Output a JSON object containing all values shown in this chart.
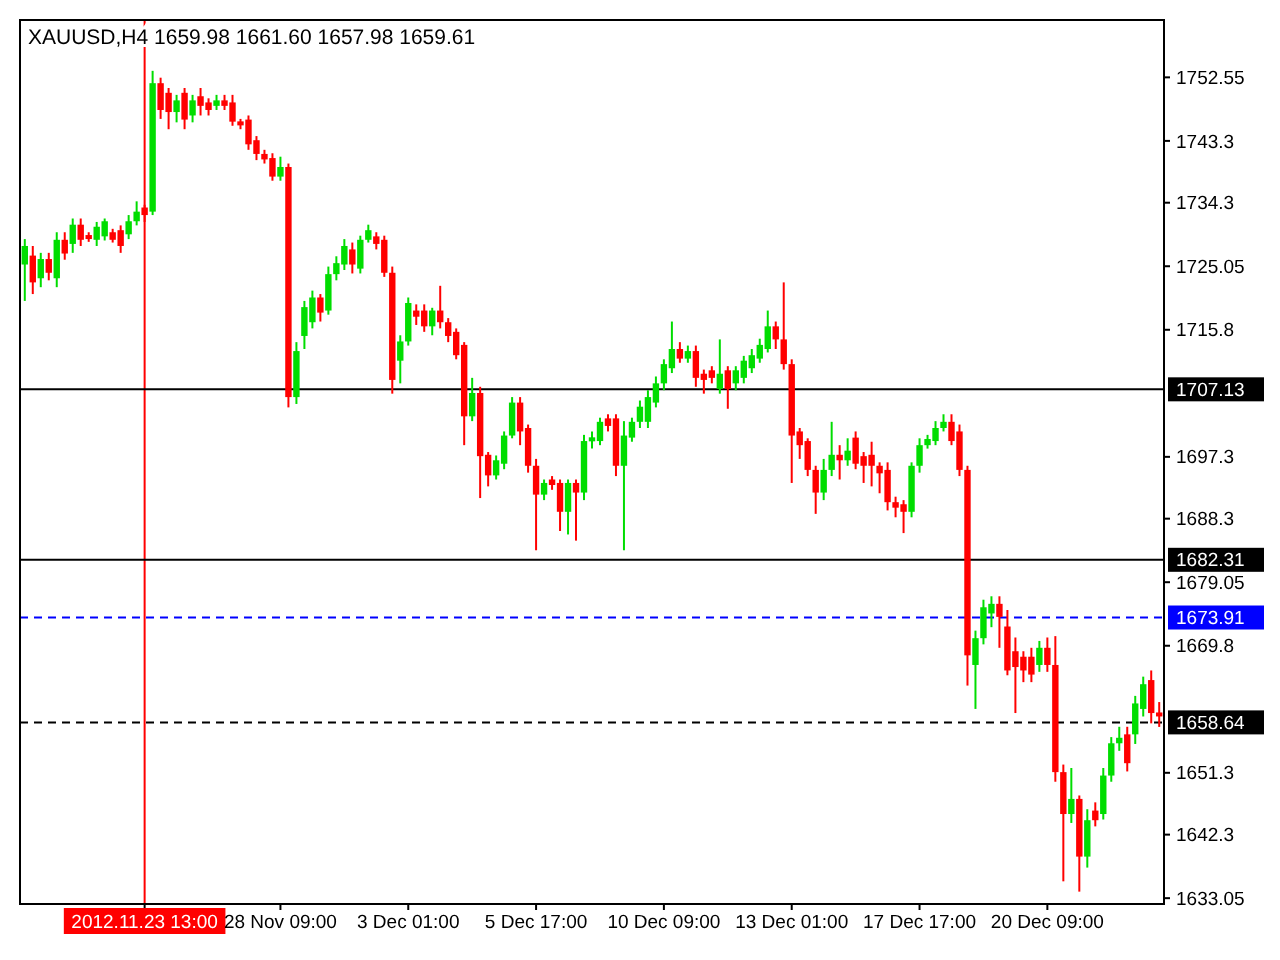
{
  "chart_data": {
    "type": "candlestick",
    "title": "XAUUSD,H4  1659.98 1661.60 1657.98 1659.61",
    "categories": [
      null,
      null,
      null,
      null,
      null,
      null,
      null,
      null,
      null,
      null,
      null,
      null,
      null,
      null,
      null,
      "2012.11.23 13:00",
      null,
      null,
      null,
      null,
      null,
      null,
      null,
      null,
      null,
      null,
      null,
      null,
      null,
      null,
      null,
      null,
      "28 Nov 09:00",
      null,
      null,
      null,
      null,
      null,
      null,
      null,
      null,
      null,
      null,
      null,
      null,
      null,
      null,
      null,
      "3 Dec 01:00",
      null,
      null,
      null,
      null,
      null,
      null,
      null,
      null,
      null,
      null,
      null,
      null,
      null,
      null,
      null,
      "5 Dec 17:00",
      null,
      null,
      null,
      null,
      null,
      null,
      null,
      null,
      null,
      null,
      null,
      null,
      null,
      null,
      null,
      "10 Dec 09:00",
      null,
      null,
      null,
      null,
      null,
      null,
      null,
      null,
      null,
      null,
      null,
      null,
      null,
      null,
      null,
      "13 Dec 01:00",
      null,
      null,
      null,
      null,
      null,
      null,
      null,
      null,
      null,
      null,
      null,
      null,
      null,
      null,
      null,
      "17 Dec 17:00",
      null,
      null,
      null,
      null,
      null,
      null,
      null,
      null,
      null,
      null,
      null,
      null,
      null,
      null,
      null,
      "20 Dec 09:00",
      null,
      null,
      null,
      null,
      null,
      null,
      null,
      null,
      null,
      null,
      null,
      null,
      null,
      null
    ],
    "ohlc": [
      [
        1725.3,
        1729,
        1720,
        1728
      ],
      [
        1726.6,
        1728,
        1721,
        1722.7
      ],
      [
        1723.3,
        1727,
        1722,
        1726.1
      ],
      [
        1726.1,
        1727,
        1723,
        1724.1
      ],
      [
        1723.3,
        1730,
        1722,
        1728.9
      ],
      [
        1728.9,
        1730,
        1726,
        1726.9
      ],
      [
        1728.3,
        1732,
        1727,
        1731.1
      ],
      [
        1731.1,
        1732,
        1728,
        1728.9
      ],
      [
        1729.4,
        1730,
        1728.6,
        1729.2
      ],
      [
        1728.9,
        1731.5,
        1728,
        1730.8
      ],
      [
        1729.4,
        1732,
        1728.8,
        1731.6
      ],
      [
        1730,
        1730.5,
        1728.5,
        1728.9
      ],
      [
        1730.3,
        1731,
        1727,
        1728
      ],
      [
        1729.7,
        1732.5,
        1729,
        1731.6
      ],
      [
        1731.6,
        1734.5,
        1731,
        1733
      ],
      [
        1733.6,
        1734,
        1731.5,
        1732.5
      ],
      [
        1733,
        1753.5,
        1732.5,
        1751.7
      ],
      [
        1751.7,
        1752.5,
        1746.5,
        1747.8
      ],
      [
        1750.3,
        1751,
        1745,
        1747.5
      ],
      [
        1747.5,
        1750,
        1746,
        1749.2
      ],
      [
        1750.3,
        1751,
        1745,
        1746.4
      ],
      [
        1747,
        1750,
        1746,
        1749.2
      ],
      [
        1749.8,
        1751,
        1747,
        1748.4
      ],
      [
        1748.9,
        1749.5,
        1747,
        1747.8
      ],
      [
        1748.4,
        1750,
        1747.8,
        1749.2
      ],
      [
        1749.2,
        1750,
        1747.8,
        1748.4
      ],
      [
        1748.9,
        1750,
        1745.5,
        1746.1
      ],
      [
        1746.1,
        1746.5,
        1745,
        1745.6
      ],
      [
        1746.4,
        1747,
        1742,
        1742.8
      ],
      [
        1743.4,
        1744,
        1740.5,
        1741.4
      ],
      [
        1741.4,
        1742,
        1740,
        1740.6
      ],
      [
        1740.8,
        1741.5,
        1737.5,
        1738.1
      ],
      [
        1738.1,
        1741,
        1737.5,
        1739.5
      ],
      [
        1739.5,
        1740,
        1704.5,
        1706
      ],
      [
        1706,
        1714,
        1705,
        1712.7
      ],
      [
        1714.9,
        1720,
        1713,
        1719.1
      ],
      [
        1716.9,
        1721.5,
        1716,
        1720.5
      ],
      [
        1720.5,
        1721,
        1717,
        1718.3
      ],
      [
        1718.6,
        1725,
        1718,
        1723.9
      ],
      [
        1723.9,
        1726.5,
        1723,
        1725.5
      ],
      [
        1725.3,
        1729,
        1724.5,
        1728
      ],
      [
        1727.5,
        1728.5,
        1724,
        1725.3
      ],
      [
        1724.7,
        1729.5,
        1724,
        1728.9
      ],
      [
        1728.9,
        1731.1,
        1728.5,
        1730.3
      ],
      [
        1729.4,
        1730,
        1727.5,
        1728.3
      ],
      [
        1728.9,
        1729.5,
        1723.5,
        1724.1
      ],
      [
        1724.1,
        1725,
        1706.5,
        1708.5
      ],
      [
        1711.3,
        1715,
        1708,
        1714.1
      ],
      [
        1714.1,
        1720.5,
        1713.5,
        1719.7
      ],
      [
        1718.6,
        1719.5,
        1716.5,
        1717.7
      ],
      [
        1718.6,
        1719.5,
        1715.5,
        1716.3
      ],
      [
        1716.3,
        1719,
        1715,
        1718.6
      ],
      [
        1718.6,
        1722.2,
        1716,
        1716.9
      ],
      [
        1716.9,
        1717.5,
        1714,
        1714.9
      ],
      [
        1715.5,
        1716,
        1711.5,
        1712.1
      ],
      [
        1713.6,
        1714,
        1699,
        1703.2
      ],
      [
        1703.2,
        1708.8,
        1702.5,
        1706.6
      ],
      [
        1706.6,
        1707.5,
        1691.3,
        1697.4
      ],
      [
        1697.6,
        1698,
        1693,
        1694.6
      ],
      [
        1694.6,
        1697.5,
        1694,
        1696.8
      ],
      [
        1696.3,
        1701,
        1695.5,
        1700.4
      ],
      [
        1700.4,
        1706,
        1700,
        1705.2
      ],
      [
        1705.2,
        1706,
        1699,
        1701
      ],
      [
        1701.5,
        1702,
        1695,
        1696
      ],
      [
        1696,
        1697,
        1683.7,
        1691.8
      ],
      [
        1691.8,
        1694,
        1691,
        1693.5
      ],
      [
        1694,
        1694.5,
        1692.5,
        1693.2
      ],
      [
        1693.5,
        1694,
        1686.5,
        1689.3
      ],
      [
        1689.3,
        1694,
        1686,
        1693.5
      ],
      [
        1693.5,
        1694,
        1685.1,
        1692.1
      ],
      [
        1692.1,
        1700.5,
        1691,
        1699.6
      ],
      [
        1699.6,
        1701,
        1698.5,
        1700.1
      ],
      [
        1699.6,
        1703,
        1699,
        1702.4
      ],
      [
        1702.9,
        1703.5,
        1701,
        1701.8
      ],
      [
        1702.9,
        1703.5,
        1694.5,
        1696
      ],
      [
        1696,
        1702.5,
        1683.7,
        1700.4
      ],
      [
        1700.1,
        1703,
        1699.5,
        1702.4
      ],
      [
        1702.4,
        1705.5,
        1701.5,
        1704.6
      ],
      [
        1702.4,
        1707,
        1701.5,
        1706
      ],
      [
        1705.2,
        1709,
        1704.5,
        1708
      ],
      [
        1708,
        1711.5,
        1707,
        1710.8
      ],
      [
        1710.2,
        1717,
        1709.5,
        1713
      ],
      [
        1713,
        1714,
        1711,
        1711.6
      ],
      [
        1711.6,
        1713.5,
        1711,
        1712.7
      ],
      [
        1712.7,
        1713.5,
        1707.5,
        1708.8
      ],
      [
        1709.4,
        1710,
        1706.5,
        1708.5
      ],
      [
        1709.9,
        1710.5,
        1708,
        1708.8
      ],
      [
        1707.2,
        1714.4,
        1706.5,
        1709.4
      ],
      [
        1709.9,
        1710.5,
        1704.3,
        1707.2
      ],
      [
        1708,
        1710.5,
        1707,
        1709.9
      ],
      [
        1708.8,
        1712,
        1708,
        1711.3
      ],
      [
        1710.2,
        1713,
        1709.5,
        1712.1
      ],
      [
        1711.6,
        1714.5,
        1711,
        1713.6
      ],
      [
        1713,
        1718.6,
        1712.5,
        1716.3
      ],
      [
        1716.3,
        1717,
        1713,
        1714.4
      ],
      [
        1714.4,
        1722.7,
        1710,
        1710.8
      ],
      [
        1710.8,
        1711.5,
        1693.5,
        1700.4
      ],
      [
        1701,
        1701.5,
        1697,
        1699
      ],
      [
        1699.6,
        1700,
        1694.5,
        1695.4
      ],
      [
        1695.4,
        1696,
        1689,
        1692.1
      ],
      [
        1692.1,
        1697,
        1691,
        1695.4
      ],
      [
        1695.4,
        1702.4,
        1694.5,
        1697.6
      ],
      [
        1697.6,
        1699,
        1694,
        1696.8
      ],
      [
        1696.8,
        1700,
        1696,
        1698.2
      ],
      [
        1700.1,
        1701,
        1695.5,
        1696.3
      ],
      [
        1697.4,
        1698,
        1693.5,
        1696
      ],
      [
        1697.6,
        1699.5,
        1693,
        1696
      ],
      [
        1696,
        1696.5,
        1692,
        1694.9
      ],
      [
        1695.4,
        1696.5,
        1689.5,
        1690.7
      ],
      [
        1690.7,
        1691.5,
        1688.5,
        1689.9
      ],
      [
        1690.4,
        1691,
        1686.2,
        1689.3
      ],
      [
        1689.3,
        1696.5,
        1688.5,
        1696
      ],
      [
        1696,
        1700,
        1695,
        1699
      ],
      [
        1699,
        1700.5,
        1698.5,
        1699.9
      ],
      [
        1699.6,
        1702.5,
        1699,
        1701.5
      ],
      [
        1701.5,
        1703.5,
        1701,
        1702.4
      ],
      [
        1702.4,
        1703.5,
        1699,
        1699.6
      ],
      [
        1701,
        1702,
        1694.5,
        1695.4
      ],
      [
        1695.4,
        1696,
        1664,
        1668.4
      ],
      [
        1667,
        1672,
        1660.6,
        1670.9
      ],
      [
        1670.9,
        1676.5,
        1670,
        1675.4
      ],
      [
        1674.5,
        1677,
        1672.5,
        1675.9
      ],
      [
        1675.9,
        1677,
        1669.5,
        1674
      ],
      [
        1672.6,
        1675,
        1665.5,
        1666.2
      ],
      [
        1669,
        1671,
        1660,
        1666.7
      ],
      [
        1668.2,
        1669,
        1664.5,
        1666.2
      ],
      [
        1668.2,
        1669.5,
        1664.5,
        1665.6
      ],
      [
        1667,
        1670.5,
        1666,
        1669.5
      ],
      [
        1669.5,
        1671,
        1666,
        1667
      ],
      [
        1667,
        1671.2,
        1650,
        1651.4
      ],
      [
        1651.4,
        1652.5,
        1635.5,
        1645.3
      ],
      [
        1645.3,
        1652,
        1644,
        1647.5
      ],
      [
        1647.5,
        1648,
        1634,
        1639.1
      ],
      [
        1639.1,
        1646,
        1637.5,
        1644.4
      ],
      [
        1645.8,
        1647,
        1643.5,
        1644.4
      ],
      [
        1645.3,
        1652,
        1644.5,
        1650.9
      ],
      [
        1650.9,
        1656.5,
        1650,
        1655.6
      ],
      [
        1655.6,
        1658,
        1654.5,
        1656.4
      ],
      [
        1656.9,
        1658,
        1651.5,
        1652.7
      ],
      [
        1656.9,
        1662.5,
        1655.5,
        1661.4
      ],
      [
        1660.6,
        1665.3,
        1659.5,
        1664.2
      ],
      [
        1664.8,
        1666.2,
        1658.5,
        1660
      ],
      [
        1659.98,
        1661.6,
        1657.98,
        1659.61
      ]
    ],
    "ylim": [
      1632.2,
      1760.9
    ],
    "yticks": [
      1633.05,
      1642.3,
      1651.3,
      1669.8,
      1679.05,
      1688.3,
      1697.3,
      1715.8,
      1725.05,
      1734.3,
      1743.3,
      1752.55
    ],
    "ref_lines": [
      {
        "axis": "y",
        "value": 1707.13,
        "label": "1707.13",
        "color": "#000000",
        "line_style": "solid"
      },
      {
        "axis": "y",
        "value": 1682.31,
        "label": "1682.31",
        "color": "#000000",
        "line_style": "solid"
      },
      {
        "axis": "y",
        "value": 1673.91,
        "label": "1673.91",
        "color": "#0000ff",
        "line_style": "dashed"
      },
      {
        "axis": "y",
        "value": 1658.64,
        "label": "1658.64",
        "color": "#000000",
        "line_style": "dashed"
      },
      {
        "axis": "x",
        "value": "2012.11.23 13:00",
        "color": "#ff0000",
        "line_style": "solid"
      }
    ]
  }
}
